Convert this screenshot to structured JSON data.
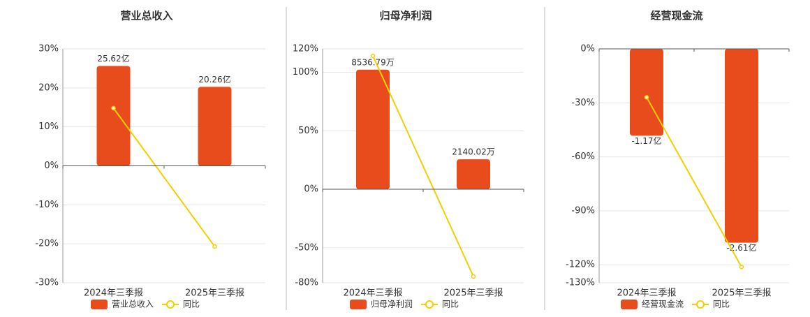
{
  "chart_data": [
    {
      "type": "bar",
      "title": "营业总收入",
      "categories": [
        "2024年三季报",
        "2025年三季报"
      ],
      "series": [
        {
          "name": "营业总收入",
          "color": "#e84c1c",
          "values": [
            25.62,
            20.26
          ],
          "value_labels": [
            "25.62亿",
            "20.26亿"
          ],
          "axis": "y2"
        },
        {
          "name": "同比",
          "type": "line",
          "color": "#f0d000",
          "values": [
            14.8,
            -20.7
          ]
        }
      ],
      "ylim": [
        -30,
        30
      ],
      "yticks": [
        {
          "value": 30,
          "label": "30%"
        },
        {
          "value": 20,
          "label": "20%"
        },
        {
          "value": 10,
          "label": "10%"
        },
        {
          "value": 0,
          "label": "0%"
        },
        {
          "value": -10,
          "label": "-10%"
        },
        {
          "value": -20,
          "label": "-20%"
        },
        {
          "value": -30,
          "label": "-30%"
        }
      ],
      "y2lim": [
        -30,
        30
      ],
      "grid": true
    },
    {
      "type": "bar",
      "title": "归母净利润",
      "categories": [
        "2024年三季报",
        "2025年三季报"
      ],
      "series": [
        {
          "name": "归母净利润",
          "color": "#e84c1c",
          "values": [
            8536.79,
            2140.02
          ],
          "value_labels": [
            "8536.79万",
            "2140.02万"
          ],
          "axis": "y2"
        },
        {
          "name": "同比",
          "type": "line",
          "color": "#f0d000",
          "values": [
            114,
            -74.6
          ]
        }
      ],
      "ylim": [
        -80,
        120
      ],
      "yticks": [
        {
          "value": 120,
          "label": "120%"
        },
        {
          "value": 100,
          "label": "100%"
        },
        {
          "value": 50,
          "label": "50%"
        },
        {
          "value": 0,
          "label": "0%"
        },
        {
          "value": -50,
          "label": "-50%"
        },
        {
          "value": -80,
          "label": "-80%"
        }
      ],
      "y2lim": [
        -6680,
        10020
      ],
      "grid": true
    },
    {
      "type": "bar",
      "title": "经营现金流",
      "categories": [
        "2024年三季报",
        "2025年三季报"
      ],
      "series": [
        {
          "name": "经营现金流",
          "color": "#e84c1c",
          "values": [
            -1.17,
            -2.61
          ],
          "value_labels": [
            "-1.17亿",
            "-2.61亿"
          ],
          "axis": "y2"
        },
        {
          "name": "同比",
          "type": "line",
          "color": "#f0d000",
          "values": [
            -26.9,
            -121.2
          ]
        }
      ],
      "ylim": [
        -130,
        0
      ],
      "yticks": [
        {
          "value": 0,
          "label": "0%"
        },
        {
          "value": -30,
          "label": "-30%"
        },
        {
          "value": -60,
          "label": "-60%"
        },
        {
          "value": -90,
          "label": "-90%"
        },
        {
          "value": -120,
          "label": "-120%"
        },
        {
          "value": -130,
          "label": "-130%"
        }
      ],
      "y2lim": [
        -3.15,
        0
      ],
      "grid": true
    }
  ]
}
